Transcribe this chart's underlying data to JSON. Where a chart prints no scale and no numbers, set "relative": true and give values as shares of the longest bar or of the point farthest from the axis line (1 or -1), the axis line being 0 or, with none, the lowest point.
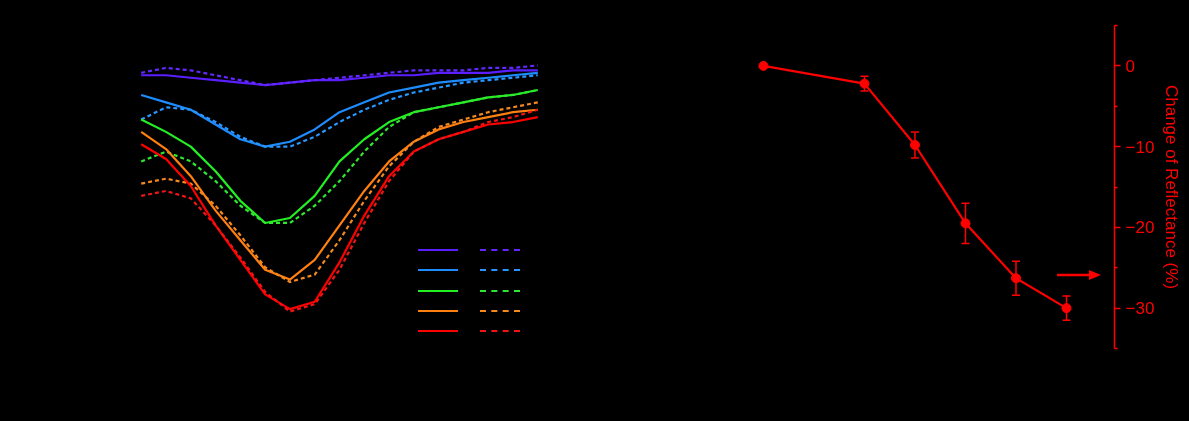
{
  "chart_data": [
    {
      "type": "line",
      "relative": true,
      "categories": [
        null,
        null,
        null,
        null,
        null,
        null,
        null,
        null,
        null,
        null,
        null,
        null,
        null,
        null,
        null,
        null,
        null
      ],
      "series": [
        {
          "color": "#5a1eff",
          "line_style": "solid",
          "values": [
            0.96,
            0.96,
            0.95,
            0.94,
            0.93,
            0.92,
            0.93,
            0.94,
            0.94,
            0.95,
            0.96,
            0.96,
            0.97,
            0.97,
            0.97,
            0.98,
            0.98
          ]
        },
        {
          "color": "#6428ff",
          "line_style": "dashed",
          "values": [
            0.97,
            0.99,
            0.98,
            0.96,
            0.94,
            0.92,
            0.93,
            0.94,
            0.95,
            0.96,
            0.97,
            0.98,
            0.98,
            0.98,
            0.99,
            0.99,
            1.0
          ]
        },
        {
          "color": "#1e8cff",
          "line_style": "solid",
          "values": [
            0.88,
            0.85,
            0.82,
            0.76,
            0.7,
            0.67,
            0.69,
            0.74,
            0.81,
            0.85,
            0.89,
            0.91,
            0.93,
            0.94,
            0.95,
            0.96,
            0.97
          ]
        },
        {
          "color": "#2896ff",
          "line_style": "dashed",
          "values": [
            0.78,
            0.83,
            0.82,
            0.77,
            0.71,
            0.67,
            0.67,
            0.71,
            0.77,
            0.82,
            0.86,
            0.89,
            0.91,
            0.93,
            0.94,
            0.95,
            0.96
          ]
        },
        {
          "color": "#22f022",
          "line_style": "solid",
          "values": [
            0.78,
            0.73,
            0.67,
            0.57,
            0.45,
            0.36,
            0.38,
            0.47,
            0.61,
            0.7,
            0.77,
            0.81,
            0.83,
            0.85,
            0.87,
            0.88,
            0.9
          ]
        },
        {
          "color": "#30e630",
          "line_style": "dashed",
          "values": [
            0.61,
            0.65,
            0.61,
            0.53,
            0.43,
            0.36,
            0.36,
            0.43,
            0.53,
            0.65,
            0.75,
            0.81,
            0.83,
            0.85,
            0.87,
            0.88,
            0.9
          ]
        },
        {
          "color": "#ff7f10",
          "line_style": "solid",
          "values": [
            0.73,
            0.66,
            0.55,
            0.41,
            0.29,
            0.17,
            0.13,
            0.21,
            0.35,
            0.49,
            0.61,
            0.69,
            0.74,
            0.77,
            0.79,
            0.81,
            0.82
          ]
        },
        {
          "color": "#f5881e",
          "line_style": "dashed",
          "values": [
            0.52,
            0.54,
            0.52,
            0.43,
            0.31,
            0.18,
            0.12,
            0.15,
            0.29,
            0.45,
            0.59,
            0.69,
            0.75,
            0.78,
            0.81,
            0.83,
            0.85
          ]
        },
        {
          "color": "#ff0000",
          "line_style": "solid",
          "values": [
            0.68,
            0.62,
            0.51,
            0.35,
            0.21,
            0.07,
            0.01,
            0.04,
            0.2,
            0.39,
            0.55,
            0.65,
            0.7,
            0.73,
            0.76,
            0.77,
            0.79
          ]
        },
        {
          "color": "#f01414",
          "line_style": "dashed",
          "values": [
            0.47,
            0.49,
            0.46,
            0.35,
            0.22,
            0.08,
            0.0,
            0.03,
            0.17,
            0.36,
            0.53,
            0.65,
            0.7,
            0.73,
            0.77,
            0.79,
            0.82
          ]
        }
      ]
    },
    {
      "type": "line",
      "marker": "circle",
      "tick_labels": "y",
      "ylabel": "Change of Reflectance (%)",
      "ylim": [
        -35,
        5
      ],
      "yticks": [
        0,
        -10,
        -20,
        -30
      ],
      "categories": [
        null,
        null,
        null,
        null,
        null,
        null,
        null
      ],
      "series": [
        {
          "color": "#ff0000",
          "values": [
            0,
            null,
            -2.2,
            -9.8,
            -19.5,
            -26.3,
            -30.0
          ],
          "errors": [
            null,
            null,
            0.9,
            1.6,
            2.5,
            2.1,
            1.5
          ]
        }
      ]
    }
  ]
}
